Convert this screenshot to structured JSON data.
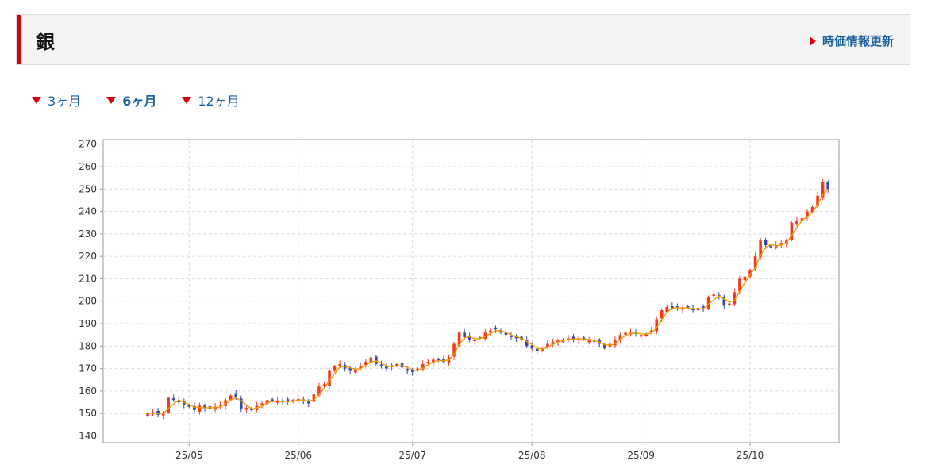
{
  "header": {
    "title": "銀",
    "update_label": "時価情報更新"
  },
  "periods": [
    {
      "label": "3ヶ月",
      "active": false
    },
    {
      "label": "6ヶ月",
      "active": true
    },
    {
      "label": "12ヶ月",
      "active": false
    }
  ],
  "colors": {
    "up": "#f23a1e",
    "down": "#3b4aa0",
    "ma_line": "#f29a00",
    "accent": "#d7000f",
    "link": "#1a5f9e"
  },
  "chart_data": {
    "type": "candlestick",
    "ylim": [
      137,
      272
    ],
    "yticks": [
      140,
      150,
      160,
      170,
      180,
      190,
      200,
      210,
      220,
      230,
      240,
      250,
      260,
      270
    ],
    "xticks": [
      {
        "label": "25/05",
        "index": 8
      },
      {
        "label": "25/06",
        "index": 29
      },
      {
        "label": "25/07",
        "index": 51
      },
      {
        "label": "25/08",
        "index": 74
      },
      {
        "label": "25/09",
        "index": 95
      },
      {
        "label": "25/10",
        "index": 116
      }
    ],
    "x_count": 128,
    "grid": true,
    "closes": [
      150,
      150.5,
      149.5,
      150,
      157,
      156,
      155,
      154,
      153,
      151.5,
      153.5,
      152.5,
      152,
      153,
      154,
      156,
      158,
      157,
      152,
      152.5,
      151.5,
      153.5,
      154.5,
      156,
      155.5,
      155.5,
      155,
      155.5,
      156,
      156.5,
      155.5,
      154.5,
      158.5,
      162,
      163,
      169,
      171,
      172,
      170,
      169,
      170,
      171,
      173,
      175,
      172,
      171,
      170,
      171.5,
      172,
      170.5,
      169,
      168.5,
      170,
      172,
      173,
      174,
      173.5,
      173,
      175,
      181,
      186,
      184,
      183,
      183,
      184,
      186,
      187,
      187.5,
      186,
      185,
      184,
      183.5,
      183,
      180,
      179,
      178,
      179,
      181,
      182,
      182.5,
      183,
      183.5,
      183,
      183.5,
      183,
      182.5,
      182,
      181,
      179,
      181,
      183,
      185,
      186,
      186,
      185.5,
      185,
      185.5,
      187,
      192,
      196,
      197.5,
      197,
      197,
      197,
      197,
      196,
      197,
      197,
      202,
      203,
      202,
      198,
      199,
      204,
      210,
      211,
      214,
      220,
      227,
      225,
      224,
      225,
      226,
      227,
      235,
      236,
      237,
      240,
      242,
      247,
      253,
      250
    ]
  }
}
